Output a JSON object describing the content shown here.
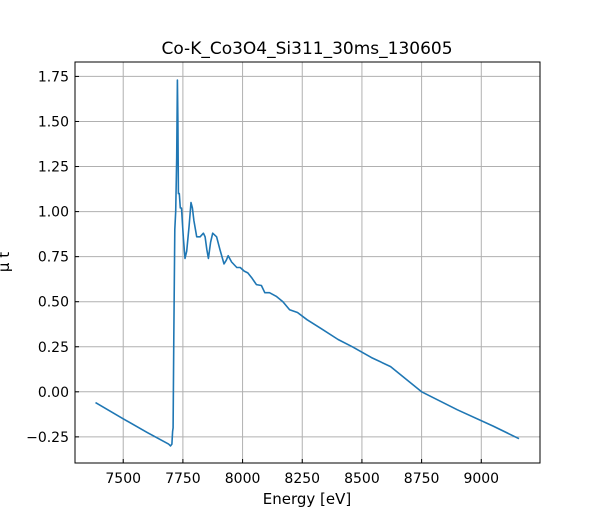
{
  "chart_data": {
    "type": "line",
    "title": "Co-K_Co3O4_Si311_30ms_130605",
    "xlabel": "Energy [eV]",
    "ylabel": "μ t",
    "xlim": [
      7298,
      9246
    ],
    "ylim": [
      -0.395,
      1.83
    ],
    "grid": true,
    "xticks": [
      7500,
      7750,
      8000,
      8250,
      8500,
      8750,
      9000
    ],
    "xtick_labels": [
      "7500",
      "7750",
      "8000",
      "8250",
      "8500",
      "8750",
      "9000"
    ],
    "yticks": [
      -0.25,
      0,
      0.25,
      0.5,
      0.75,
      1.0,
      1.25,
      1.5,
      1.75
    ],
    "ytick_labels": [
      "−0.25",
      "0.00",
      "0.25",
      "0.50",
      "0.75",
      "1.00",
      "1.25",
      "1.50",
      "1.75"
    ],
    "series": [
      {
        "name": "Co-K_Co3O4_Si311_30ms_130605",
        "color": "#1f77b4",
        "x": [
          7384,
          7500,
          7600,
          7690,
          7698,
          7704,
          7707,
          7709,
          7712,
          7716,
          7720,
          7724,
          7727,
          7729,
          7731,
          7735,
          7739,
          7744,
          7752,
          7759,
          7766,
          7776,
          7784,
          7790,
          7796,
          7808,
          7822,
          7836,
          7843,
          7850,
          7857,
          7866,
          7875,
          7891,
          7905,
          7922,
          7932,
          7940,
          7954,
          7976,
          7990,
          8007,
          8022,
          8040,
          8058,
          8079,
          8093,
          8113,
          8141,
          8169,
          8197,
          8230,
          8270,
          8330,
          8400,
          8460,
          8540,
          8620,
          8750,
          8900,
          9050,
          9158
        ],
        "y": [
          -0.06,
          -0.15,
          -0.225,
          -0.29,
          -0.3,
          -0.29,
          -0.22,
          -0.2,
          0.3,
          0.9,
          1.0,
          1.3,
          1.73,
          1.5,
          1.1,
          1.1,
          1.02,
          1.02,
          0.85,
          0.74,
          0.78,
          0.92,
          1.05,
          1.02,
          0.95,
          0.86,
          0.86,
          0.88,
          0.86,
          0.79,
          0.74,
          0.83,
          0.88,
          0.86,
          0.79,
          0.71,
          0.73,
          0.755,
          0.72,
          0.69,
          0.69,
          0.67,
          0.66,
          0.63,
          0.595,
          0.59,
          0.55,
          0.55,
          0.53,
          0.5,
          0.455,
          0.44,
          0.4,
          0.35,
          0.29,
          0.25,
          0.19,
          0.14,
          0.0,
          -0.1,
          -0.19,
          -0.26
        ]
      }
    ]
  }
}
